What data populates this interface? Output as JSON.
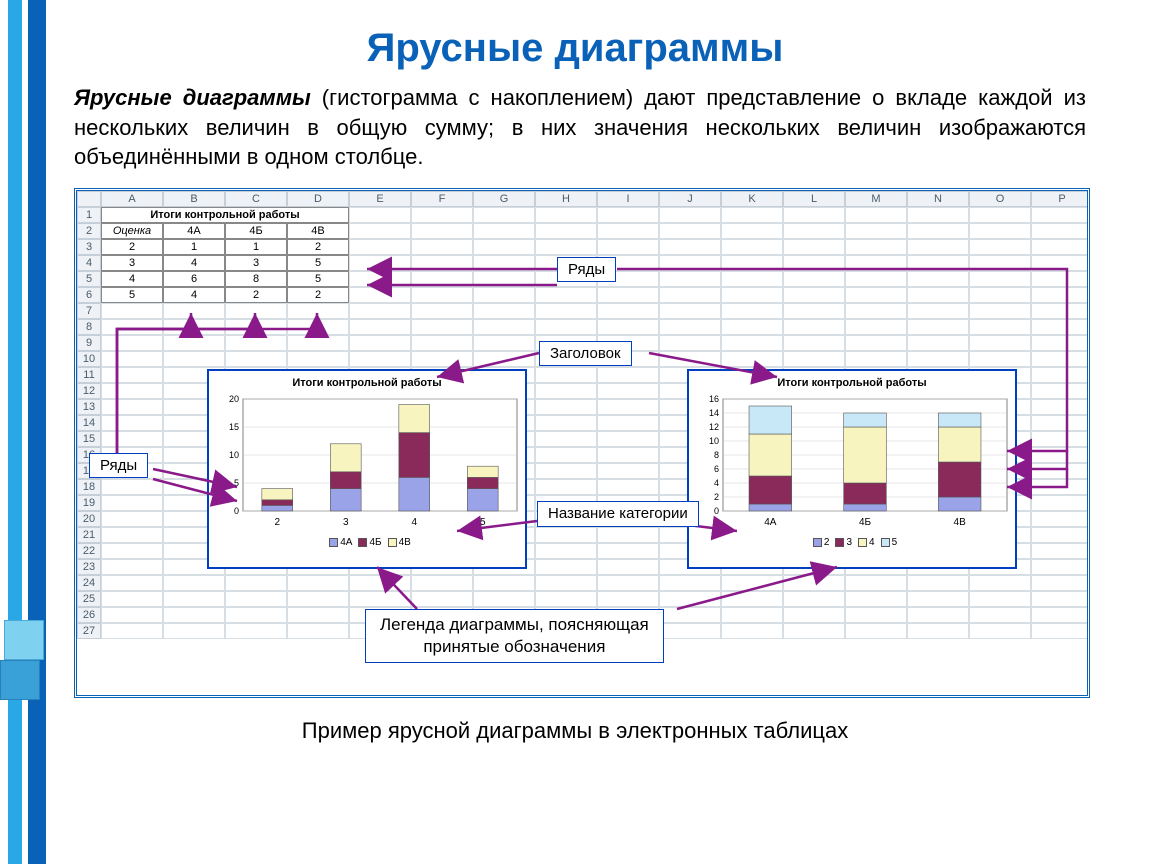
{
  "page": {
    "title": "Ярусные диаграммы",
    "intro_bold": "Ярусные диаграммы",
    "intro_rest": " (гистограмма с накоплением) дают представление о вкладе каждой из нескольких величин в общую сумму; в них значения нескольких величин изображаются объединёнными в одном столбце.",
    "caption": "Пример ярусной диаграммы в электронных таблицах"
  },
  "colors": {
    "title": "#0a62b8",
    "frame": "#0a62b8",
    "arrow": "#8a1a8a",
    "callout_border": "#0040c0",
    "chart_border": "#0040c0",
    "cell_border": "#888888",
    "grid_hdr_bg": "#eef2f6",
    "grid_hdr_border": "#c6cfd7"
  },
  "spreadsheet": {
    "columns": [
      "A",
      "B",
      "C",
      "D",
      "E",
      "F",
      "G",
      "H",
      "I",
      "J",
      "K",
      "L",
      "M",
      "N",
      "O",
      "P"
    ],
    "row_count": 27,
    "table": {
      "title": "Итоги контрольной работы",
      "headers": [
        "Оценка",
        "4А",
        "4Б",
        "4В"
      ],
      "rows": [
        [
          "2",
          "1",
          "1",
          "2"
        ],
        [
          "3",
          "4",
          "3",
          "5"
        ],
        [
          "4",
          "6",
          "8",
          "5"
        ],
        [
          "5",
          "4",
          "2",
          "2"
        ]
      ]
    }
  },
  "chart1": {
    "type": "stacked-bar",
    "title": "Итоги контрольной работы",
    "x_categories": [
      "2",
      "3",
      "4",
      "5"
    ],
    "series": [
      "4А",
      "4Б",
      "4В"
    ],
    "series_colors": [
      "#9aa2e8",
      "#8a2a5a",
      "#f8f4c0"
    ],
    "values_by_category": [
      [
        1,
        1,
        2
      ],
      [
        4,
        3,
        5
      ],
      [
        6,
        8,
        5
      ],
      [
        4,
        2,
        2
      ]
    ],
    "y_ticks": [
      0,
      5,
      10,
      15,
      20
    ],
    "ylim": [
      0,
      20
    ],
    "background": "#ffffff",
    "border_color": "#808080"
  },
  "chart2": {
    "type": "stacked-bar",
    "title": "Итоги контрольной работы",
    "x_categories": [
      "4А",
      "4Б",
      "4В"
    ],
    "series": [
      "2",
      "3",
      "4",
      "5"
    ],
    "series_colors": [
      "#9aa2e8",
      "#8a2a5a",
      "#f8f4c0",
      "#c8e8f8"
    ],
    "values_by_category": [
      [
        1,
        4,
        6,
        4
      ],
      [
        1,
        3,
        8,
        2
      ],
      [
        2,
        5,
        5,
        2
      ]
    ],
    "y_ticks": [
      0,
      2,
      4,
      6,
      8,
      10,
      12,
      14,
      16
    ],
    "ylim": [
      0,
      16
    ],
    "background": "#ffffff",
    "border_color": "#808080"
  },
  "callouts": {
    "rows_label": "Ряды",
    "rows_label_2": "Ряды",
    "heading_label": "Заголовок",
    "category_label": "Название категории",
    "legend_label": "Легенда диаграммы, поясняющая принятые обозначения"
  }
}
